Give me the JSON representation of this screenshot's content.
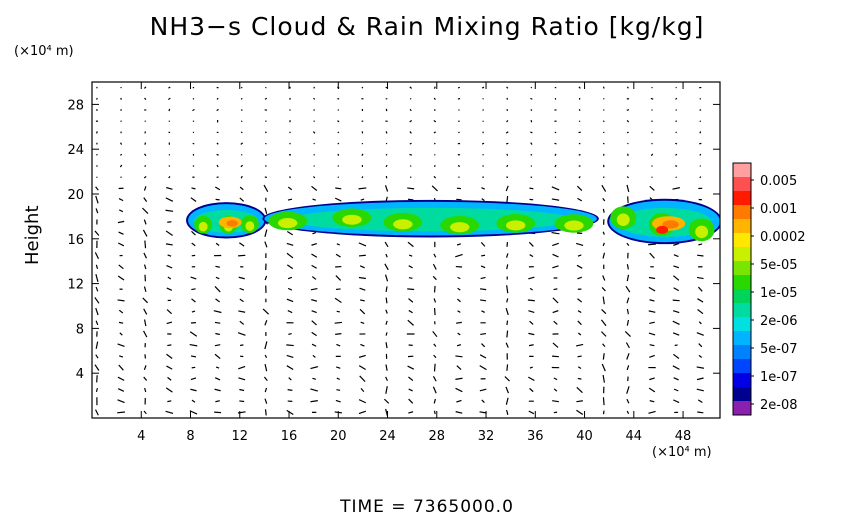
{
  "title": "NH3−s Cloud & Rain Mixing Ratio [kg/kg]",
  "time_label": "TIME  =  7365000.0",
  "chart_data": {
    "type": "heatmap",
    "title": "NH3−s Cloud & Rain Mixing Ratio [kg/kg]",
    "ylabel": "Height",
    "xunit": "(×10⁴ m)",
    "yunit": "(×10⁴ m)",
    "xlim": [
      0,
      51
    ],
    "ylim": [
      0,
      30
    ],
    "xticks": [
      4,
      8,
      12,
      16,
      20,
      24,
      28,
      32,
      36,
      40,
      44,
      48
    ],
    "yticks": [
      4,
      8,
      12,
      16,
      20,
      24,
      28
    ],
    "grid": false,
    "overlay": "wind vectors",
    "colorbar": {
      "labels": [
        "0.005",
        "0.001",
        "0.0002",
        "5e-05",
        "1e-05",
        "2e-06",
        "5e-07",
        "1e-07",
        "2e-08"
      ],
      "colors": [
        "#ff9f9f",
        "#ff5050",
        "#ff1a00",
        "#ff7a00",
        "#ffb400",
        "#ffe800",
        "#c8f000",
        "#78e600",
        "#28d800",
        "#00d45a",
        "#00dca0",
        "#00e0e0",
        "#00b4ff",
        "#0082ff",
        "#0046ff",
        "#0000e6",
        "#000090",
        "#8a1fb0"
      ]
    },
    "cloud_regions": [
      {
        "x_start": 7.8,
        "x_end": 14.0,
        "y_bottom": 16.2,
        "y_top": 19.1,
        "peak_ratio": "0.0002"
      },
      {
        "x_start": 14.0,
        "x_end": 41.0,
        "y_bottom": 16.3,
        "y_top": 19.3,
        "peak_ratio": "5e-05"
      },
      {
        "x_start": 42.0,
        "x_end": 51.0,
        "y_bottom": 15.7,
        "y_top": 19.4,
        "peak_ratio": "0.001"
      }
    ]
  }
}
